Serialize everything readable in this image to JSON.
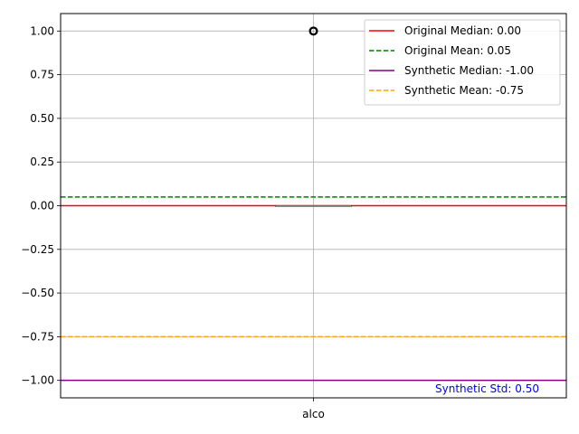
{
  "chart_data": {
    "type": "box",
    "categories": [
      "alco"
    ],
    "ylim": [
      -1.1,
      1.1
    ],
    "yticks": [
      "−1.00",
      "−0.75",
      "−0.50",
      "−0.25",
      "0.00",
      "0.25",
      "0.50",
      "0.75",
      "1.00"
    ],
    "ytick_values": [
      -1.0,
      -0.75,
      -0.5,
      -0.25,
      0.0,
      0.25,
      0.5,
      0.75,
      1.0
    ],
    "grid": true,
    "legend_placement": "top-right",
    "box": {
      "median": 0.0,
      "q1": 0.0,
      "q3": 0.0,
      "whisker_low": 0.0,
      "whisker_high": 0.0,
      "outliers": [
        1.0
      ],
      "median_color": "#2ca02c",
      "outlier_color": "#000000"
    },
    "reference_lines": [
      {
        "label": "Original Median: 0.00",
        "value": 0.0,
        "color": "#ff0000",
        "style": "solid"
      },
      {
        "label": "Original Mean: 0.05",
        "value": 0.05,
        "color": "#008000",
        "style": "dashed"
      },
      {
        "label": "Synthetic Median: -1.00",
        "value": -1.0,
        "color": "#800080",
        "style": "solid"
      },
      {
        "label": "Synthetic Mean: -0.75",
        "value": -0.75,
        "color": "#ffa500",
        "style": "dashed"
      }
    ],
    "annotation": {
      "text": "Synthetic Std: 0.50",
      "color": "#0000ff"
    }
  }
}
